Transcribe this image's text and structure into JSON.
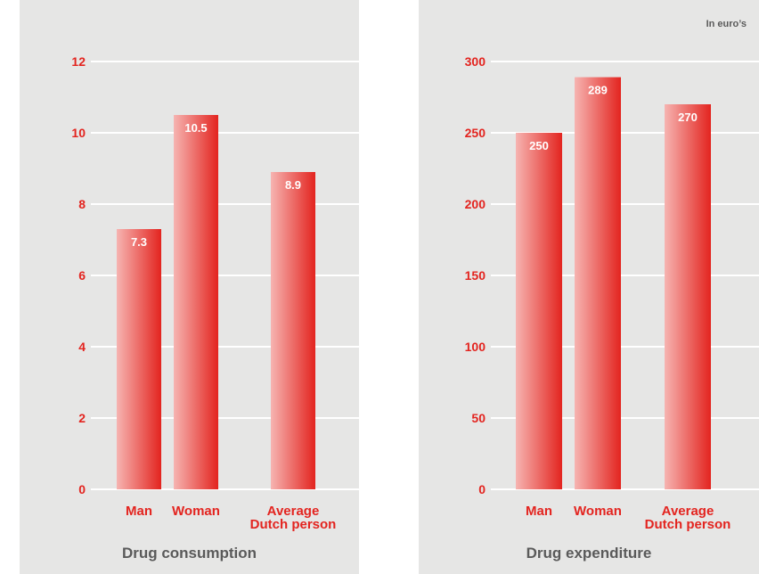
{
  "colors": {
    "panel_bg": "#e6e6e5",
    "grid": "#ffffff",
    "accent_red": "#e3241f",
    "bar_light": "#f6b4b1",
    "bar_dark": "#e3241f",
    "title_gray": "#5a5a5a"
  },
  "chart_data": [
    {
      "type": "bar",
      "title": "Drug consumption",
      "unit_note": "",
      "categories": [
        [
          "Man"
        ],
        [
          "Woman"
        ],
        [
          "Average",
          "Dutch person"
        ]
      ],
      "values": [
        7.3,
        10.5,
        8.9
      ],
      "value_labels": [
        "7.3",
        "10.5",
        "8.9"
      ],
      "yticks": [
        "0",
        "2",
        "4",
        "6",
        "8",
        "10",
        "12"
      ],
      "ylim": [
        0,
        12
      ],
      "grid": true
    },
    {
      "type": "bar",
      "title": "Drug expenditure",
      "unit_note": "In euro’s",
      "categories": [
        [
          "Man"
        ],
        [
          "Woman"
        ],
        [
          "Average",
          "Dutch person"
        ]
      ],
      "values": [
        250,
        289,
        270
      ],
      "value_labels": [
        "250",
        "289",
        "270"
      ],
      "yticks": [
        "0",
        "50",
        "100",
        "150",
        "200",
        "250",
        "300"
      ],
      "ylim": [
        0,
        300
      ],
      "grid": true
    }
  ]
}
